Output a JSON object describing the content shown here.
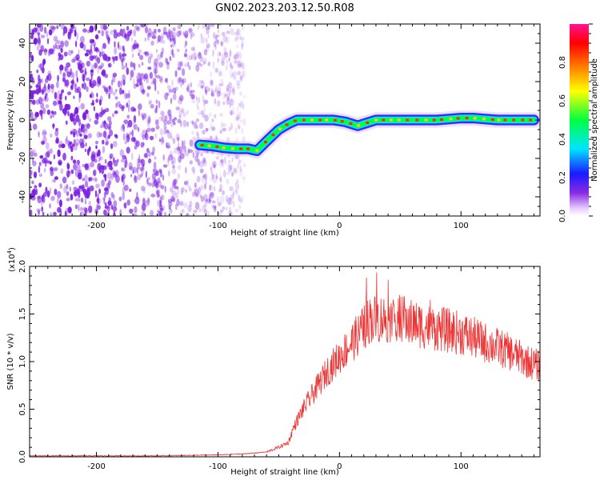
{
  "title": "GN02.2023.203.12.50.R08",
  "colors": {
    "spectrogram_noise": "#7b1fe0",
    "snr_line": "#ee3333"
  },
  "chart_data": [
    {
      "type": "heatmap",
      "xlabel": "Height of straight line (km)",
      "ylabel": "Frequency (Hz)",
      "xlim": [
        -255,
        165
      ],
      "ylim": [
        -50,
        50
      ],
      "x_ticks": [
        -200,
        -100,
        0,
        100
      ],
      "y_ticks": [
        -40,
        -20,
        0,
        20,
        40
      ],
      "x_tick_labels": [
        "-200",
        "-100",
        "0",
        "100"
      ],
      "y_tick_labels": [
        "-40",
        "-20",
        "0",
        "20",
        "40"
      ],
      "colorbar": {
        "label": "Normalized spectral amplitude",
        "range": [
          0,
          1
        ],
        "ticks": [
          0.0,
          0.2,
          0.4,
          0.6,
          0.8
        ],
        "tick_labels": [
          "0.0",
          "0.2",
          "0.4",
          "0.6",
          "0.8"
        ],
        "colormap": "rainbow (white-violet-blue-cyan-green-yellow-red-magenta)"
      },
      "ridge": {
        "x": [
          -115,
          -105,
          -95,
          -85,
          -75,
          -68,
          -60,
          -50,
          -42,
          -35,
          -25,
          -15,
          -5,
          5,
          15,
          20,
          30,
          40,
          60,
          80,
          90,
          100,
          110,
          120,
          130,
          140,
          150,
          160
        ],
        "y": [
          -13,
          -13.5,
          -14.5,
          -15,
          -15,
          -16,
          -11,
          -5,
          -2,
          0,
          0,
          0,
          0,
          -1,
          -3,
          -2,
          0,
          0,
          0,
          0,
          0.5,
          1,
          1,
          0.5,
          0,
          0,
          0,
          0
        ]
      }
    },
    {
      "type": "line",
      "xlabel": "Height of straight line (km)",
      "ylabel": "SNR (10 * v/v)",
      "y_multiplier": "(x10",
      "y_multiplier_exp": "4",
      "y_multiplier_close": ")",
      "xlim": [
        -255,
        165
      ],
      "ylim": [
        0,
        2.0
      ],
      "x_ticks": [
        -200,
        -100,
        0,
        100
      ],
      "y_ticks": [
        0.0,
        0.5,
        1.0,
        1.5,
        2.0
      ],
      "x_tick_labels": [
        "-200",
        "-100",
        "0",
        "100"
      ],
      "y_tick_labels": [
        "0.0",
        "0.5",
        "1.0",
        "1.5",
        "2.0"
      ],
      "series": [
        {
          "x": [
            -255,
            -200,
            -150,
            -100,
            -80,
            -60,
            -50,
            -42,
            -38,
            -30,
            -20,
            -10,
            0,
            10,
            20,
            25,
            30,
            40,
            50,
            60,
            80,
            100,
            120,
            140,
            155,
            165
          ],
          "y": [
            0.01,
            0.01,
            0.01,
            0.02,
            0.03,
            0.05,
            0.1,
            0.15,
            0.3,
            0.5,
            0.7,
            0.9,
            1.05,
            1.2,
            1.35,
            1.45,
            1.45,
            1.45,
            1.45,
            1.4,
            1.35,
            1.3,
            1.2,
            1.1,
            1.0,
            0.95
          ]
        }
      ]
    }
  ]
}
